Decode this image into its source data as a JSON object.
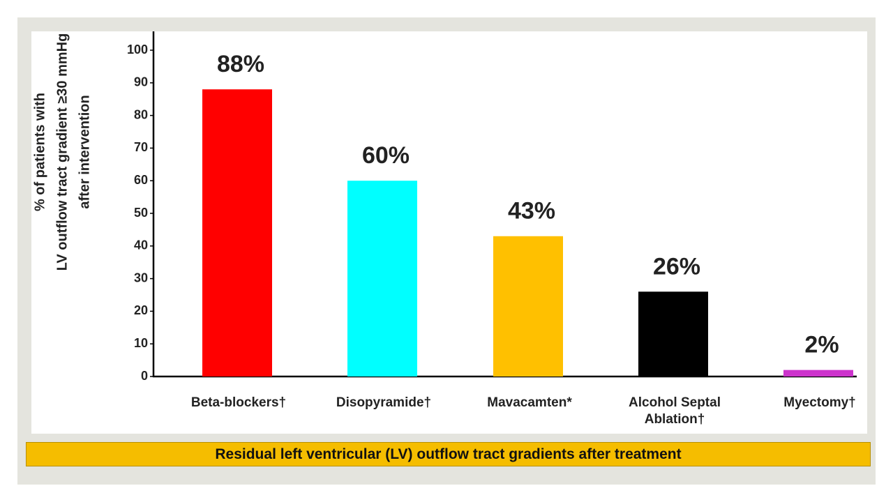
{
  "chart_data": {
    "type": "bar",
    "caption": "Residual left ventricular (LV) outflow tract gradients after treatment",
    "ylabel": [
      "% of patients with",
      "LV outflow tract gradient ≥30 mmHg",
      "after intervention"
    ],
    "categories": [
      "Beta-blockers†",
      "Disopyramide†",
      "Mavacamten*",
      "Alcohol Septal Ablation†",
      "Myectomy†"
    ],
    "values": [
      88,
      60,
      43,
      26,
      2
    ],
    "value_labels": [
      "88%",
      "60%",
      "43%",
      "26%",
      "2%"
    ],
    "colors": [
      "#ff0000",
      "#00ffff",
      "#ffc000",
      "#000000",
      "#cc33cc"
    ],
    "ylim": [
      0,
      100
    ],
    "yticks": [
      0,
      10,
      20,
      30,
      40,
      50,
      60,
      70,
      80,
      90,
      100
    ]
  }
}
